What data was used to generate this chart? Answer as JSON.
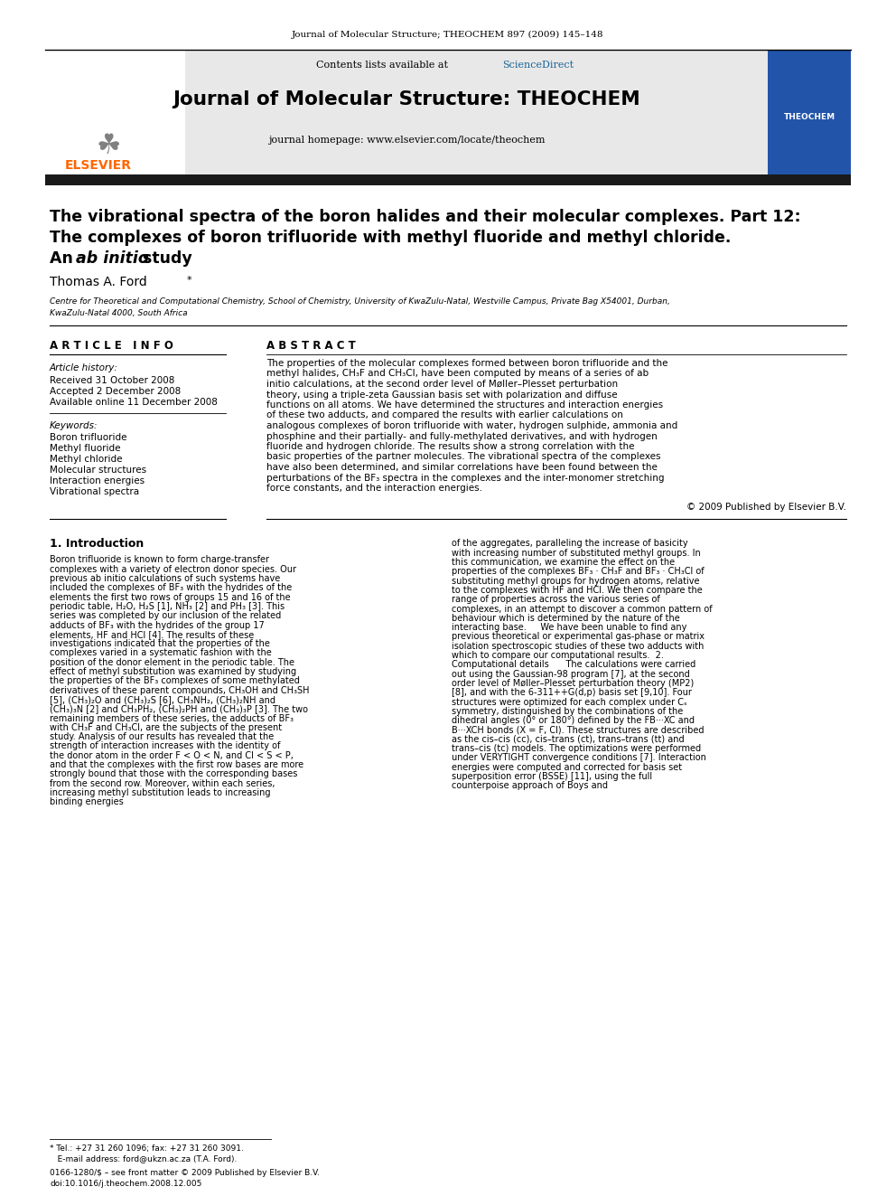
{
  "page_header": "Journal of Molecular Structure; THEOCHEM 897 (2009) 145–148",
  "journal_name": "Journal of Molecular Structure: THEOCHEM",
  "contents_line": "Contents lists available at ScienceDirect",
  "homepage_line": "journal homepage: www.elsevier.com/locate/theochem",
  "title_line1": "The vibrational spectra of the boron halides and their molecular complexes. Part 12:",
  "title_line2": "The complexes of boron trifluoride with methyl fluoride and methyl chloride.",
  "title_line3_normal": "An ",
  "title_line3_italic": "ab initio",
  "title_line3_end": " study",
  "author": "Thomas A. Ford",
  "affiliation1": "Centre for Theoretical and Computational Chemistry, School of Chemistry, University of KwaZulu-Natal, Westville Campus, Private Bag X54001, Durban,",
  "affiliation2": "KwaZulu-Natal 4000, South Africa",
  "article_info_header": "A R T I C L E   I N F O",
  "abstract_header": "A B S T R A C T",
  "article_history_label": "Article history:",
  "received": "Received 31 October 2008",
  "accepted": "Accepted 2 December 2008",
  "available": "Available online 11 December 2008",
  "keywords_label": "Keywords:",
  "keywords": [
    "Boron trifluoride",
    "Methyl fluoride",
    "Methyl chloride",
    "Molecular structures",
    "Interaction energies",
    "Vibrational spectra"
  ],
  "abstract_text": "The properties of the molecular complexes formed between boron trifluoride and the methyl halides, CH₃F and CH₃Cl, have been computed by means of a series of ab initio calculations, at the second order level of Møller–Plesset perturbation theory, using a triple-zeta Gaussian basis set with polarization and diffuse functions on all atoms. We have determined the structures and interaction energies of these two adducts, and compared the results with earlier calculations on analogous complexes of boron trifluoride with water, hydrogen sulphide, ammonia and phosphine and their partially- and fully-methylated derivatives, and with hydrogen fluoride and hydrogen chloride. The results show a strong correlation with the basic properties of the partner molecules. The vibrational spectra of the complexes have also been determined, and similar correlations have been found between the perturbations of the BF₃ spectra in the complexes and the inter-monomer stretching force constants, and the interaction energies.",
  "copyright": "© 2009 Published by Elsevier B.V.",
  "intro_header": "1. Introduction",
  "intro_col1": "    Boron trifluoride is known to form charge-transfer complexes with a variety of electron donor species. Our previous ab initio calculations of such systems have included the complexes of BF₃ with the hydrides of the elements the first two rows of groups 15 and 16 of the periodic table, H₂O, H₂S [1], NH₃ [2] and PH₃ [3]. This series was completed by our inclusion of the related adducts of BF₃ with the hydrides of the group 17 elements, HF and HCl [4]. The results of these investigations indicated that the properties of the complexes varied in a systematic fashion with the position of the donor element in the periodic table. The effect of methyl substitution was examined by studying the properties of the BF₃ complexes of some methylated derivatives of these parent compounds, CH₃OH and CH₃SH [5], (CH₃)₂O and (CH₃)₂S [6], CH₃NH₂, (CH₃)₂NH and (CH₃)₃N [2] and CH₃PH₂, (CH₃)₂PH and (CH₃)₃P [3]. The two remaining members of these series, the adducts of BF₃ with CH₃F and CH₃Cl, are the subjects of the present study. Analysis of our results has revealed that the strength of interaction increases with the identity of the donor atom in the order F < O < N, and Cl < S < P, and that the complexes with the first row bases are more strongly bound that those with the corresponding bases from the second row. Moreover, within each series, increasing methyl substitution leads to increasing binding energies",
  "intro_col2": "of the aggregates, paralleling the increase of basicity with increasing number of substituted methyl groups. In this communication, we examine the effect on the properties of the complexes BF₃ · CH₃F and BF₃ · CH₃Cl of substituting methyl groups for hydrogen atoms, relative to the complexes with HF and HCl. We then compare the range of properties across the various series of complexes, in an attempt to discover a common pattern of behaviour which is determined by the nature of the interacting base.\n    We have been unable to find any previous theoretical or experimental gas-phase or matrix isolation spectroscopic studies of these two adducts with which to compare our computational results.\n\n2. Computational details\n\n    The calculations were carried out using the Gaussian-98 program [7], at the second order level of Møller–Plesset perturbation theory (MP2) [8], and with the 6-311++G(d,p) basis set [9,10]. Four structures were optimized for each complex under Cₛ symmetry, distinguished by the combinations of the dihedral angles (0° or 180°) defined by the FB···XC and B···XCH bonds (X = F, Cl). These structures are described as the cis–cis (cc), cis–trans (ct), trans–trans (tt) and trans–cis (tc) models. The optimizations were performed under VERYTIGHT convergence conditions [7]. Interaction energies were computed and corrected for basis set superposition error (BSSE) [11], using the full counterpoise approach of Boys and",
  "footnote1": "* Tel.: +27 31 260 1096; fax: +27 31 260 3091.",
  "footnote2": "   E-mail address: ford@ukzn.ac.za (T.A. Ford).",
  "footer1": "0166-1280/$ – see front matter © 2009 Published by Elsevier B.V.",
  "footer2": "doi:10.1016/j.theochem.2008.12.005",
  "bg_color": "#ffffff",
  "dark_bar_color": "#1a1a1a",
  "elsevier_orange": "#ff6600",
  "science_direct_blue": "#1a6496",
  "text_color": "#000000"
}
